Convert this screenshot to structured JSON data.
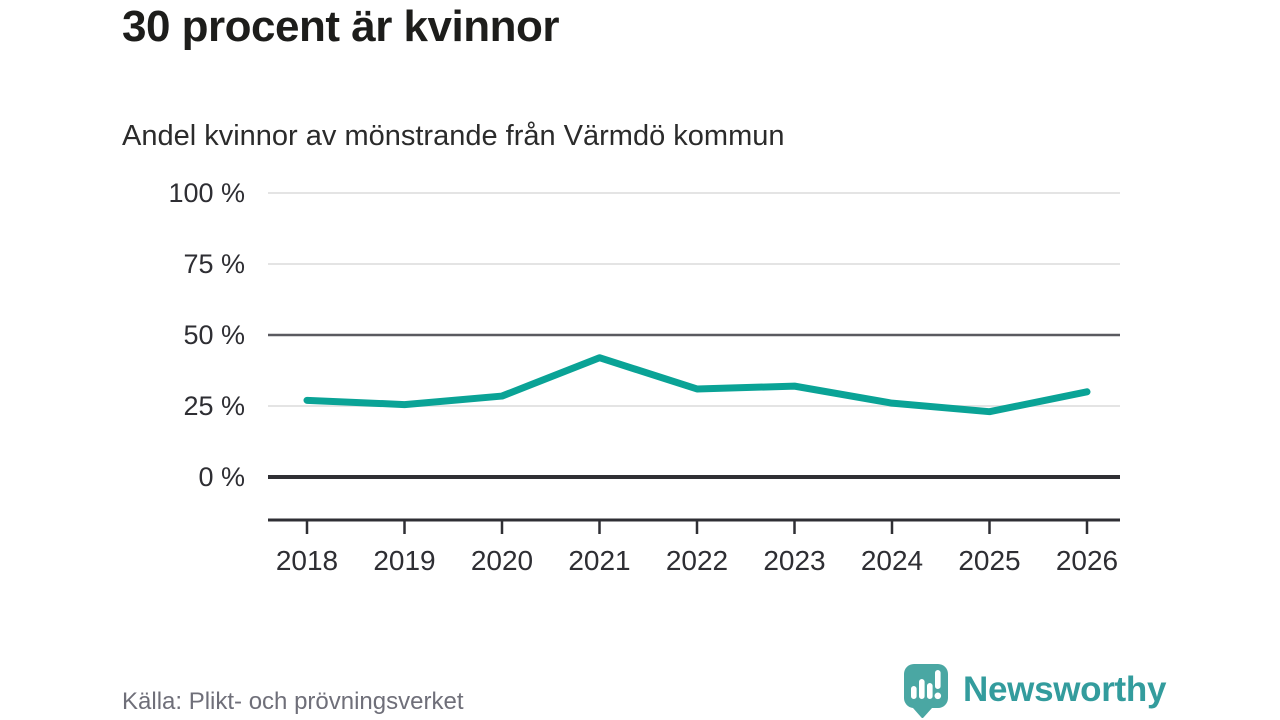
{
  "header": {
    "title": "30 procent är kvinnor",
    "subtitle": "Andel kvinnor av mönstrande från Värmdö kommun"
  },
  "chart_data": {
    "type": "line",
    "title": "30 procent är kvinnor",
    "subtitle": "Andel kvinnor av mönstrande från Värmdö kommun",
    "categories": [
      "2018",
      "2019",
      "2020",
      "2021",
      "2022",
      "2023",
      "2024",
      "2025",
      "2026"
    ],
    "series": [
      {
        "name": "Andel kvinnor av mönstrande",
        "values": [
          27,
          25.5,
          28.5,
          42,
          31,
          32,
          26,
          23,
          30
        ]
      }
    ],
    "unit": "%",
    "ylim": [
      0,
      100
    ],
    "yticks": [
      {
        "value": 0,
        "label": "0 %"
      },
      {
        "value": 25,
        "label": "25 %"
      },
      {
        "value": 50,
        "label": "50 %"
      },
      {
        "value": 75,
        "label": "75 %"
      },
      {
        "value": 100,
        "label": "100 %"
      }
    ],
    "grid": "horizontal",
    "legend_position": "none",
    "line_color": "#0aa396"
  },
  "footer": {
    "source": "Källa: Plikt- och prövningsverket",
    "brand": "Newsworthy"
  },
  "colors": {
    "accent_teal": "#0aa396",
    "logo_bubble": "#4aa7a3",
    "logo_text": "#339c9d",
    "grid_light": "#e4e4e4",
    "grid_mid": "#5a5a60",
    "axis_dark": "#2f2f34",
    "text_dark": "#2e2e33",
    "text_muted": "#6f6f79"
  }
}
